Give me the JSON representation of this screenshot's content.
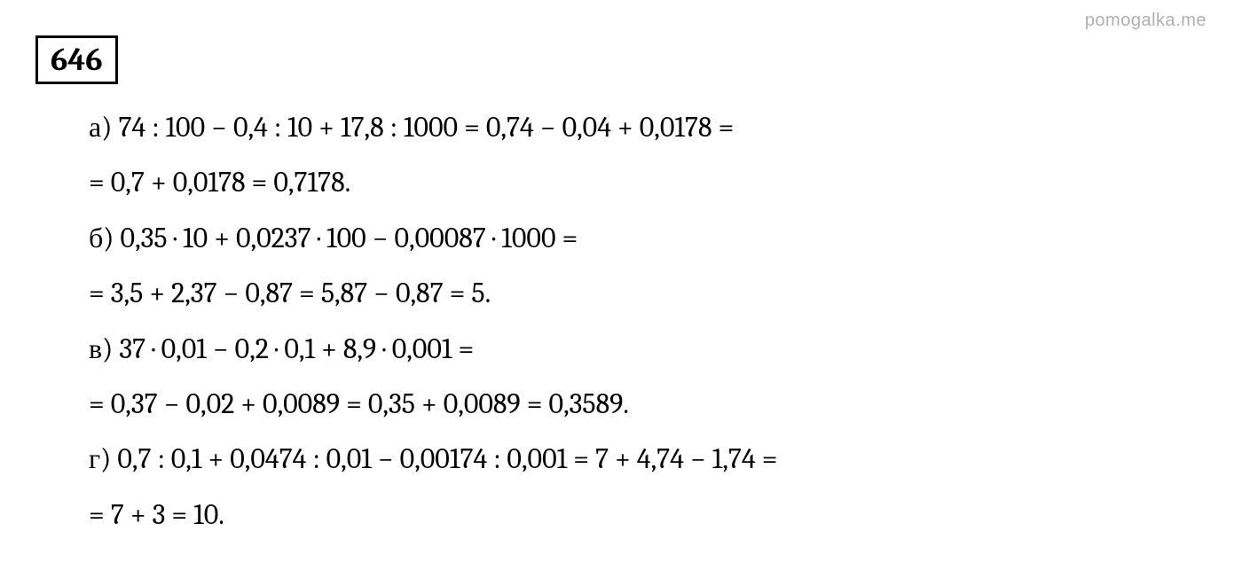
{
  "watermark": "pomogalka.me",
  "problem_number": "646",
  "lines": [
    "а) 74 : 100 − 0,4 : 10 + 17,8 : 1000 = 0,74 − 0,04 + 0,0178 =",
    "= 0,7 + 0,0178 = 0,7178.",
    "б) 0,35 · 10 + 0,0237 · 100 − 0,00087 · 1000 =",
    "= 3,5 + 2,37 − 0,87 = 5,87 − 0,87 = 5.",
    "в) 37 · 0,01 − 0,2 · 0,1 + 8,9 · 0,001 =",
    "= 0,37 − 0,02 + 0,0089 = 0,35 + 0,0089 = 0,3589.",
    "г) 0,7 : 0,1 + 0,0474 : 0,01 − 0,00174 : 0,001 = 7 + 4,74 − 1,74 =",
    "= 7 + 3 = 10."
  ],
  "colors": {
    "background": "#ffffff",
    "text": "#000000",
    "watermark": "#b0b0b0",
    "border": "#000000"
  },
  "typography": {
    "problem_number_fontsize": 36,
    "line_fontsize": 32,
    "watermark_fontsize": 20,
    "font_family": "Cambria, Georgia, Times New Roman, serif"
  }
}
